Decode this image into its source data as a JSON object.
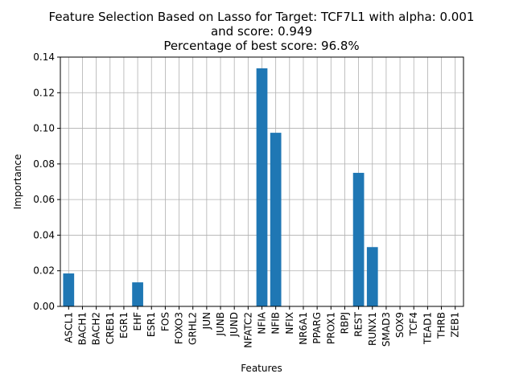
{
  "chart_data": {
    "type": "bar",
    "title_lines": [
      "Feature Selection Based on Lasso for Target: TCF7L1 with alpha: 0.001",
      "and score: 0.949",
      "Percentage of best score: 96.8%"
    ],
    "xlabel": "Features",
    "ylabel": "Importance",
    "ylim": [
      0,
      0.14
    ],
    "yticks": [
      "0.00",
      "0.02",
      "0.04",
      "0.06",
      "0.08",
      "0.10",
      "0.12",
      "0.14"
    ],
    "grid": true,
    "bar_color": "#1f77b4",
    "categories": [
      "ASCL1",
      "BACH1",
      "BACH2",
      "CREB1",
      "EGR1",
      "EHF",
      "ESR1",
      "FOS",
      "FOXO3",
      "GRHL2",
      "JUN",
      "JUNB",
      "JUND",
      "NFATC2",
      "NFIA",
      "NFIB",
      "NFIX",
      "NR6A1",
      "PPARG",
      "PROX1",
      "RBPJ",
      "REST",
      "RUNX1",
      "SMAD3",
      "SOX9",
      "TCF4",
      "TEAD1",
      "THRB",
      "ZEB1"
    ],
    "values": [
      0.0185,
      0,
      0,
      0,
      0,
      0.0135,
      0,
      0,
      0,
      0,
      0,
      0,
      0,
      0,
      0.1337,
      0.0975,
      0,
      0,
      0,
      0,
      0,
      0.075,
      0.0333,
      0,
      0,
      0,
      0,
      0,
      0
    ]
  }
}
